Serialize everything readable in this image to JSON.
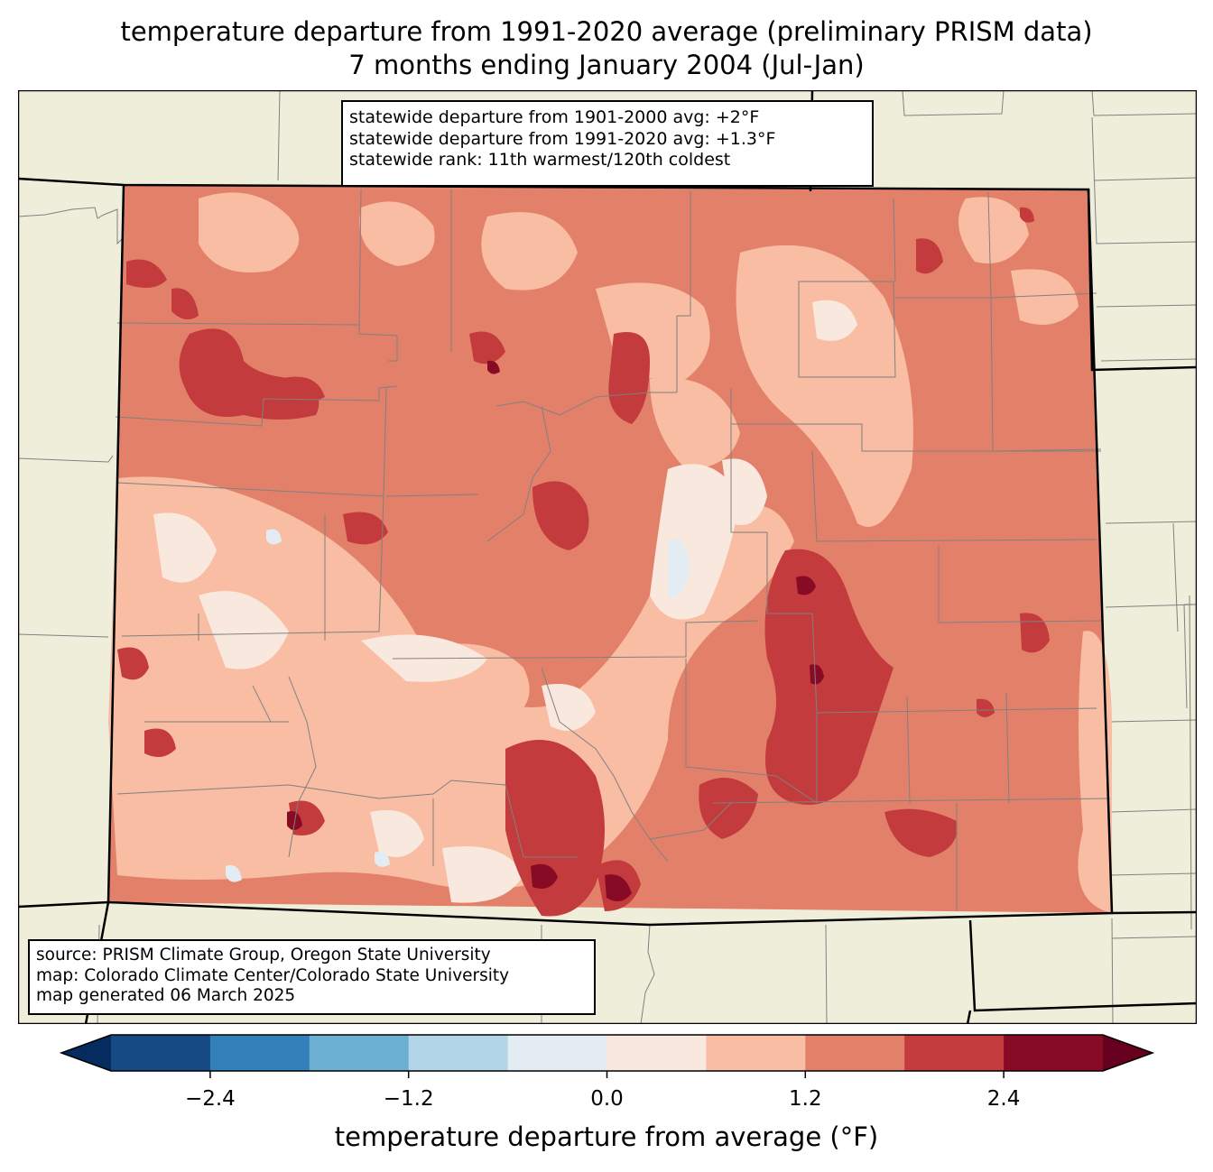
{
  "title": {
    "line1": "temperature departure from 1991-2020 average (preliminary PRISM data)",
    "line2": "7 months ending January 2004 (Jul-Jan)"
  },
  "stats": {
    "line1": "statewide departure from 1901-2000 avg: +2°F",
    "line2": "statewide departure from 1991-2020 avg: +1.3°F",
    "line3": "statewide rank: 11th warmest/120th coldest"
  },
  "source": {
    "line1": "source: PRISM Climate Group, Oregon State University",
    "line2": "map: Colorado Climate Center/Colorado State University",
    "line3": "map generated 06 March 2025"
  },
  "colorbar": {
    "label": "temperature departure from average (°F)",
    "range": [
      -3.0,
      3.0
    ],
    "boundaries": [
      -3.0,
      -2.4,
      -1.8,
      -1.2,
      -0.6,
      0.0,
      0.6,
      1.2,
      1.8,
      2.4,
      3.0
    ],
    "colors": [
      "#154a85",
      "#327fb9",
      "#6bafd1",
      "#b2d5e7",
      "#e4ecf3",
      "#f9e8de",
      "#f8bda2",
      "#e3806a",
      "#c33b3c",
      "#880b25"
    ],
    "under_color": "#062c5f",
    "over_color": "#67001f",
    "ticks": [
      {
        "value": -2.4,
        "label": "−2.4"
      },
      {
        "value": -1.2,
        "label": "−1.2"
      },
      {
        "value": 0.0,
        "label": "0.0"
      },
      {
        "value": 1.2,
        "label": "1.2"
      },
      {
        "value": 2.4,
        "label": "2.4"
      }
    ]
  },
  "map_colors": {
    "background": "#efeedb",
    "county_line": "#808080",
    "state_line": "#000000"
  }
}
